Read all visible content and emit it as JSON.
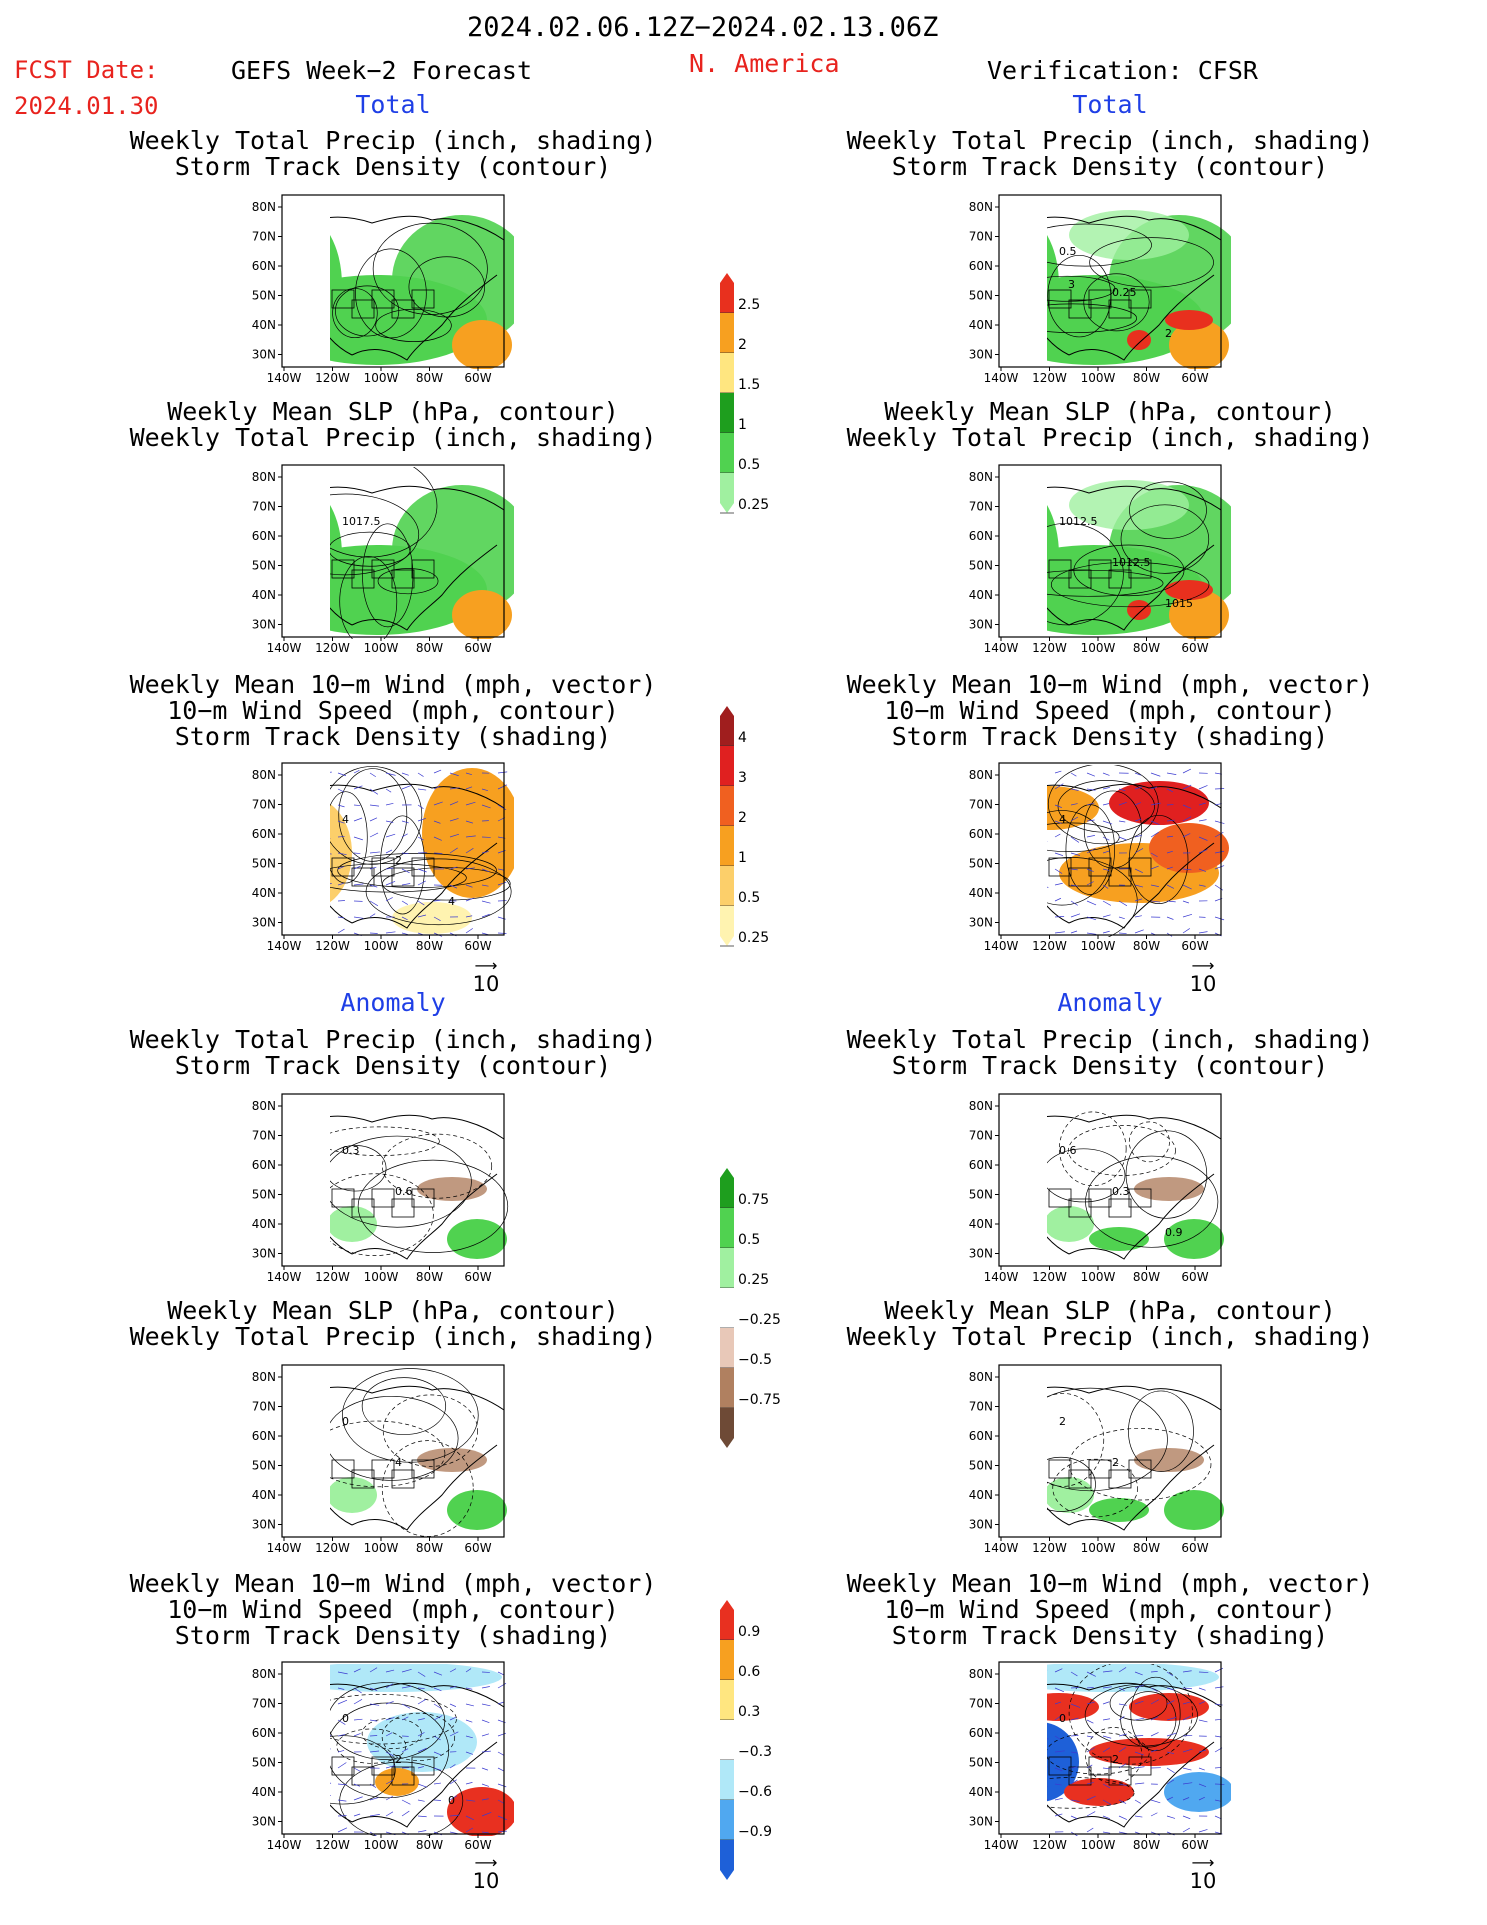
{
  "header": {
    "date_range": "2024.02.06.12Z−2024.02.13.06Z",
    "fcst_label": "FCST Date:",
    "fcst_date": "2024.01.30",
    "model": "GEFS Week−2 Forecast",
    "region": "N. America",
    "verification": "Verification: CFSR"
  },
  "sections": {
    "total": "Total",
    "anomaly": "Anomaly"
  },
  "titles": {
    "precip_storm": [
      "Weekly Total Precip (inch, shading)",
      "Storm Track Density (contour)"
    ],
    "slp_precip": [
      "Weekly Mean SLP (hPa, contour)",
      "Weekly Total Precip (inch, shading)"
    ],
    "wind_storm": [
      "Weekly Mean 10−m Wind (mph, vector)",
      "10−m Wind Speed (mph, contour)",
      "Storm Track Density (shading)"
    ]
  },
  "axes": {
    "lat_ticks": [
      "80N",
      "70N",
      "60N",
      "50N",
      "40N",
      "30N"
    ],
    "lon_ticks": [
      "140W",
      "120W",
      "100W",
      "80W",
      "60W"
    ]
  },
  "vector_ref": "10",
  "map_labels": {
    "fc_slp_total": "1017.5",
    "obs_precip_total": [
      "0.5",
      "0.25",
      "2",
      "3"
    ],
    "obs_slp_total": [
      "1012.5",
      "1012.5",
      "1015"
    ],
    "fc_wind_total": [
      "4",
      "2",
      "4"
    ],
    "obs_wind_total": [
      "4"
    ],
    "fc_precip_anom": [
      "0.3",
      "0.6"
    ],
    "obs_precip_anom": [
      "0.6",
      "0.3",
      "0.9"
    ],
    "fc_slp_anom": [
      "0",
      "4"
    ],
    "obs_slp_anom": [
      "2",
      "2"
    ],
    "fc_wind_anom": [
      "0",
      "2",
      "0"
    ],
    "obs_wind_anom": [
      "0",
      "2"
    ]
  },
  "colorbars": {
    "precip_total": {
      "labels": [
        "2.5",
        "2",
        "1.5",
        "1",
        "0.5",
        "0.25"
      ],
      "colors": [
        "#e8301e",
        "#f7a020",
        "#ffe680",
        "#1e9e1e",
        "#50d250",
        "#a0f0a0"
      ]
    },
    "storm_total": {
      "labels": [
        "4",
        "3",
        "2",
        "1",
        "0.5",
        "0.25"
      ],
      "colors": [
        "#a01e1e",
        "#e02020",
        "#f06020",
        "#f7a020",
        "#fccf6a",
        "#fff3b0"
      ]
    },
    "precip_anom": {
      "labels": [
        "0.75",
        "0.5",
        "0.25",
        "−0.25",
        "−0.5",
        "−0.75"
      ],
      "colors": [
        "#1e9e1e",
        "#50d250",
        "#a0f0a0",
        "#ffffff",
        "#e8c8b8",
        "#b08060",
        "#6e4a36"
      ]
    },
    "storm_anom": {
      "labels": [
        "0.9",
        "0.6",
        "0.3",
        "−0.3",
        "−0.6",
        "−0.9"
      ],
      "colors": [
        "#e83020",
        "#f7a020",
        "#ffe680",
        "#ffffff",
        "#b0e8f8",
        "#50a8f0",
        "#1e60d8"
      ]
    }
  }
}
